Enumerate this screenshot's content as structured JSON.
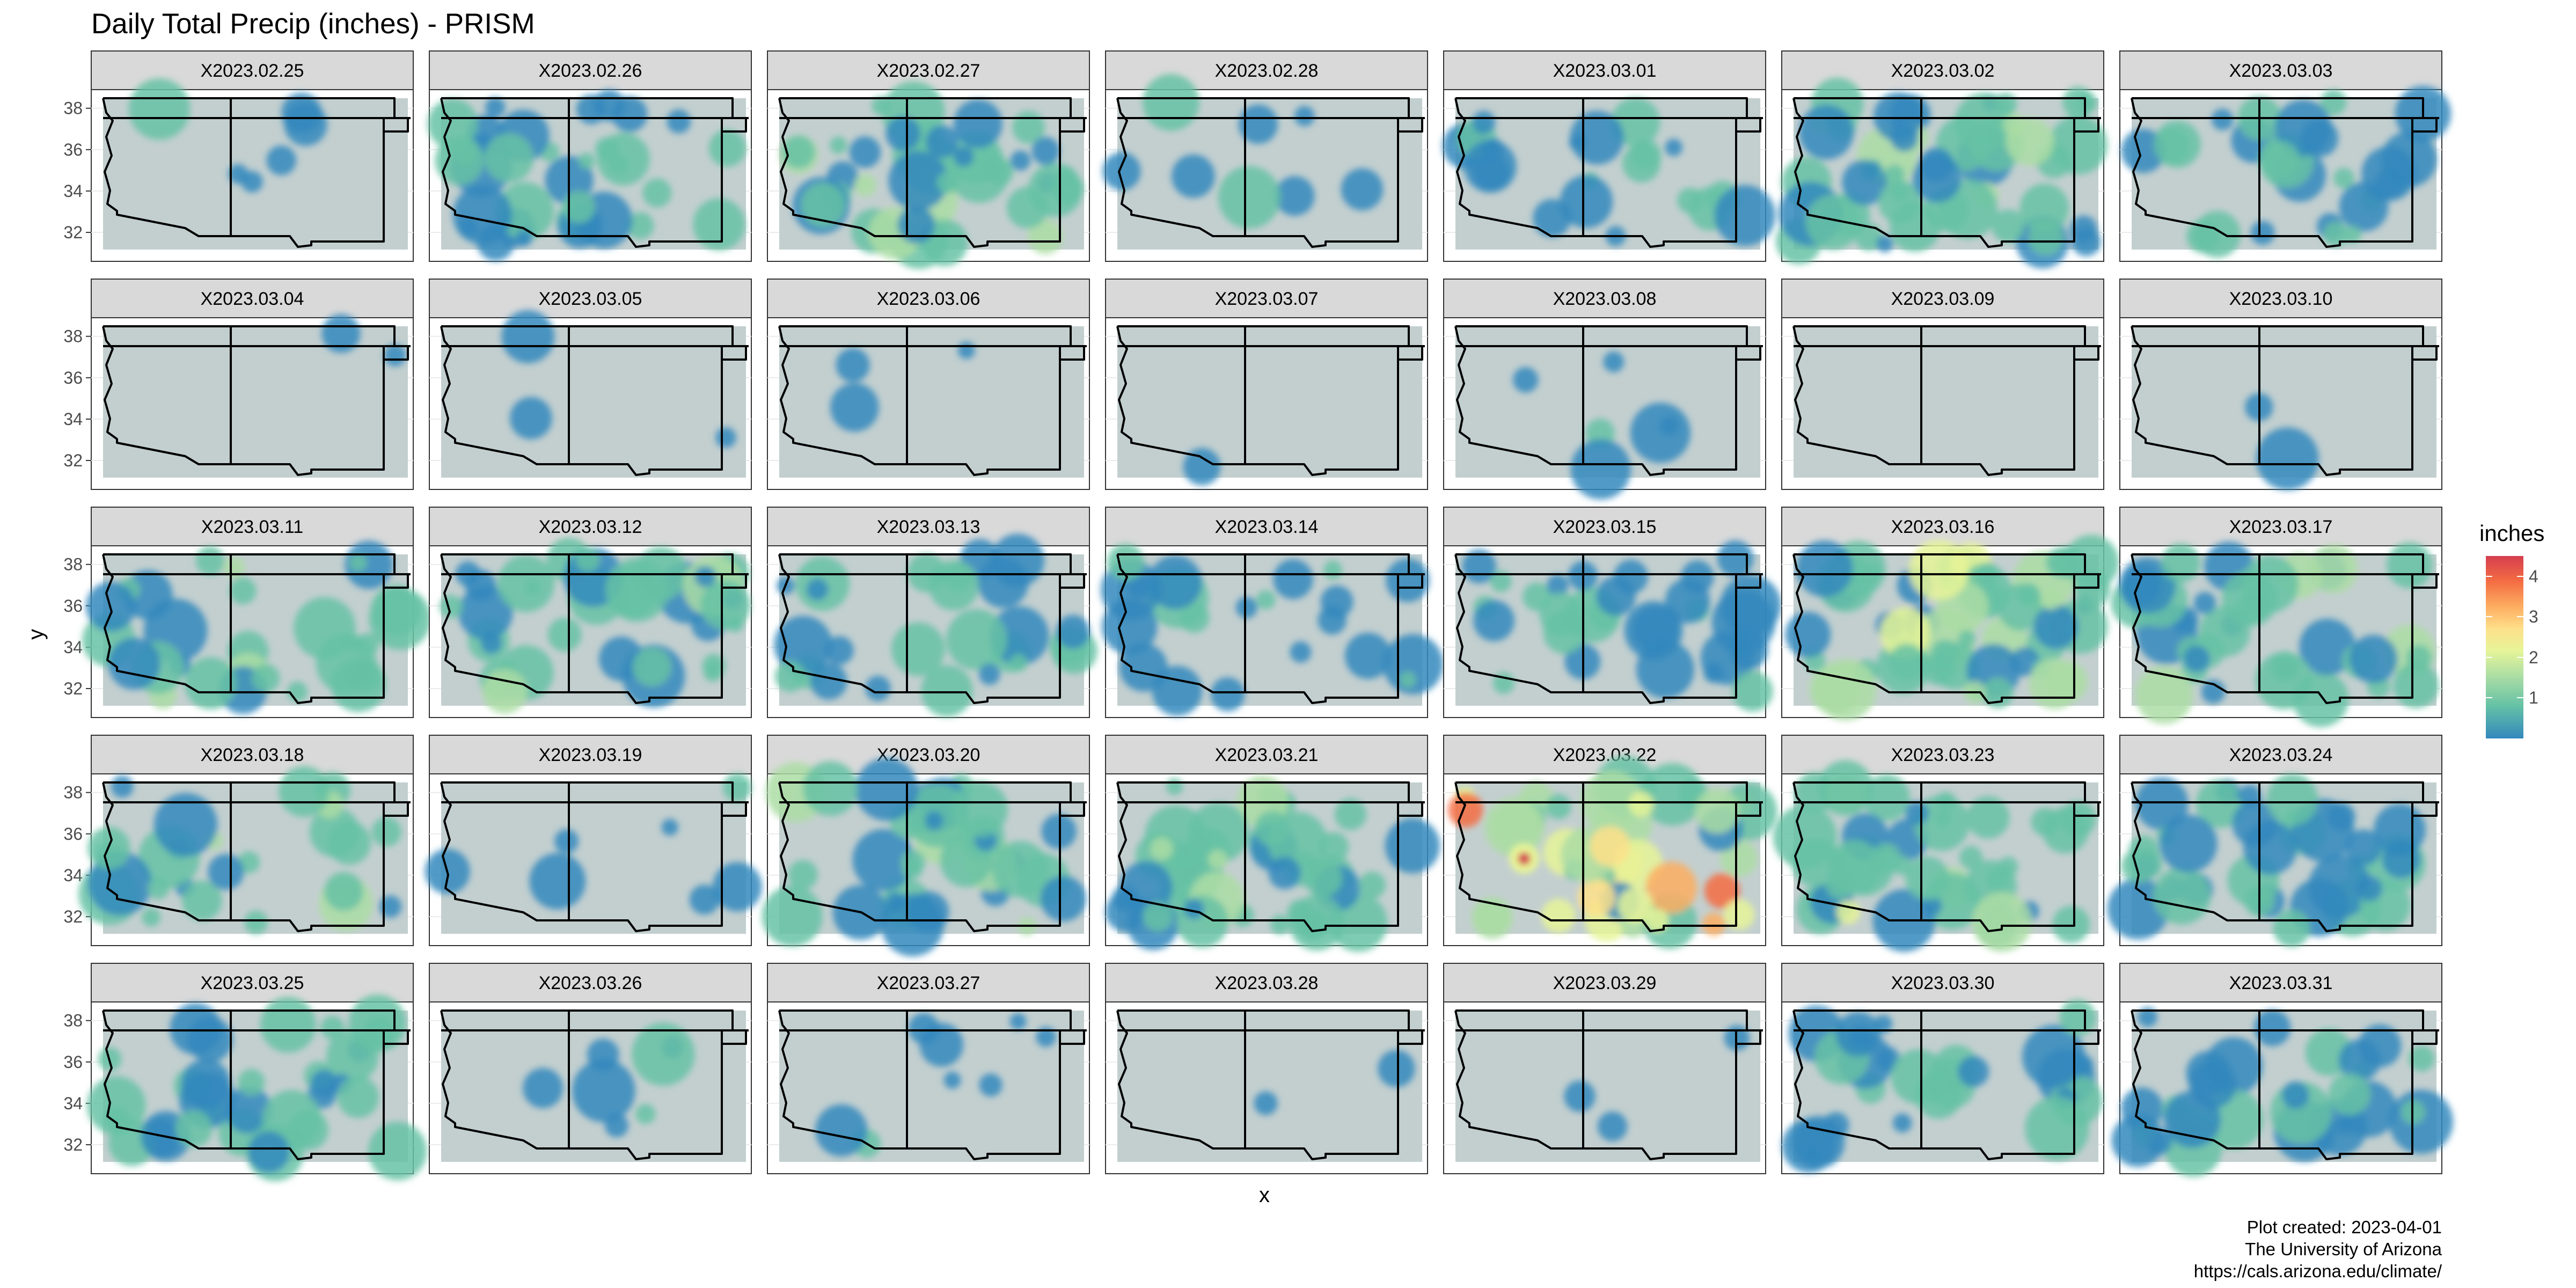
{
  "title": "Daily Total Precip (inches) - PRISM",
  "axes": {
    "x_label": "x",
    "y_label": "y",
    "y_ticks": [
      "32",
      "34",
      "36",
      "38"
    ]
  },
  "legend": {
    "title": "inches",
    "ticks": [
      "1",
      "2",
      "3",
      "4"
    ],
    "tick_values": [
      1,
      2,
      3,
      4
    ],
    "range": [
      0,
      4.5
    ]
  },
  "colors": {
    "panel_fill": "#c3cfcf",
    "precip_low": "#3288bd",
    "precip_high": "#d53e4f",
    "strip_fill": "#d9d9d9",
    "boundary": "#000000"
  },
  "panels": [
    {
      "date": "X2023.02.25",
      "coverage": 0.08,
      "max_inches": 0.8
    },
    {
      "date": "X2023.02.26",
      "coverage": 0.45,
      "max_inches": 1.3
    },
    {
      "date": "X2023.02.27",
      "coverage": 0.55,
      "max_inches": 1.8
    },
    {
      "date": "X2023.02.28",
      "coverage": 0.12,
      "max_inches": 1.0
    },
    {
      "date": "X2023.03.01",
      "coverage": 0.3,
      "max_inches": 1.2
    },
    {
      "date": "X2023.03.02",
      "coverage": 0.65,
      "max_inches": 2.2
    },
    {
      "date": "X2023.03.03",
      "coverage": 0.35,
      "max_inches": 1.1
    },
    {
      "date": "X2023.03.04",
      "coverage": 0.03,
      "max_inches": 0.5
    },
    {
      "date": "X2023.03.05",
      "coverage": 0.04,
      "max_inches": 0.5
    },
    {
      "date": "X2023.03.06",
      "coverage": 0.04,
      "max_inches": 0.6
    },
    {
      "date": "X2023.03.07",
      "coverage": 0.02,
      "max_inches": 0.4
    },
    {
      "date": "X2023.03.08",
      "coverage": 0.08,
      "max_inches": 0.7
    },
    {
      "date": "X2023.03.09",
      "coverage": 0.0,
      "max_inches": 0.1
    },
    {
      "date": "X2023.03.10",
      "coverage": 0.03,
      "max_inches": 0.5
    },
    {
      "date": "X2023.03.11",
      "coverage": 0.4,
      "max_inches": 1.8
    },
    {
      "date": "X2023.03.12",
      "coverage": 0.45,
      "max_inches": 1.9
    },
    {
      "date": "X2023.03.13",
      "coverage": 0.35,
      "max_inches": 1.3
    },
    {
      "date": "X2023.03.14",
      "coverage": 0.3,
      "max_inches": 1.0
    },
    {
      "date": "X2023.03.15",
      "coverage": 0.4,
      "max_inches": 1.2
    },
    {
      "date": "X2023.03.16",
      "coverage": 0.8,
      "max_inches": 2.4
    },
    {
      "date": "X2023.03.17",
      "coverage": 0.5,
      "max_inches": 2.1
    },
    {
      "date": "X2023.03.18",
      "coverage": 0.35,
      "max_inches": 1.9
    },
    {
      "date": "X2023.03.19",
      "coverage": 0.1,
      "max_inches": 0.8
    },
    {
      "date": "X2023.03.20",
      "coverage": 0.45,
      "max_inches": 1.4
    },
    {
      "date": "X2023.03.21",
      "coverage": 0.6,
      "max_inches": 1.9
    },
    {
      "date": "X2023.03.22",
      "coverage": 0.55,
      "max_inches": 4.5
    },
    {
      "date": "X2023.03.23",
      "coverage": 0.55,
      "max_inches": 2.0
    },
    {
      "date": "X2023.03.24",
      "coverage": 0.5,
      "max_inches": 1.2
    },
    {
      "date": "X2023.03.25",
      "coverage": 0.45,
      "max_inches": 1.2
    },
    {
      "date": "X2023.03.26",
      "coverage": 0.1,
      "max_inches": 0.8
    },
    {
      "date": "X2023.03.27",
      "coverage": 0.12,
      "max_inches": 0.8
    },
    {
      "date": "X2023.03.28",
      "coverage": 0.03,
      "max_inches": 0.7
    },
    {
      "date": "X2023.03.29",
      "coverage": 0.04,
      "max_inches": 0.5
    },
    {
      "date": "X2023.03.30",
      "coverage": 0.35,
      "max_inches": 1.1
    },
    {
      "date": "X2023.03.31",
      "coverage": 0.4,
      "max_inches": 1.2
    }
  ],
  "caption": {
    "line1": "Plot created: 2023-04-01",
    "line2": "The University of Arizona",
    "line3": "https://cals.arizona.edu/climate/"
  }
}
